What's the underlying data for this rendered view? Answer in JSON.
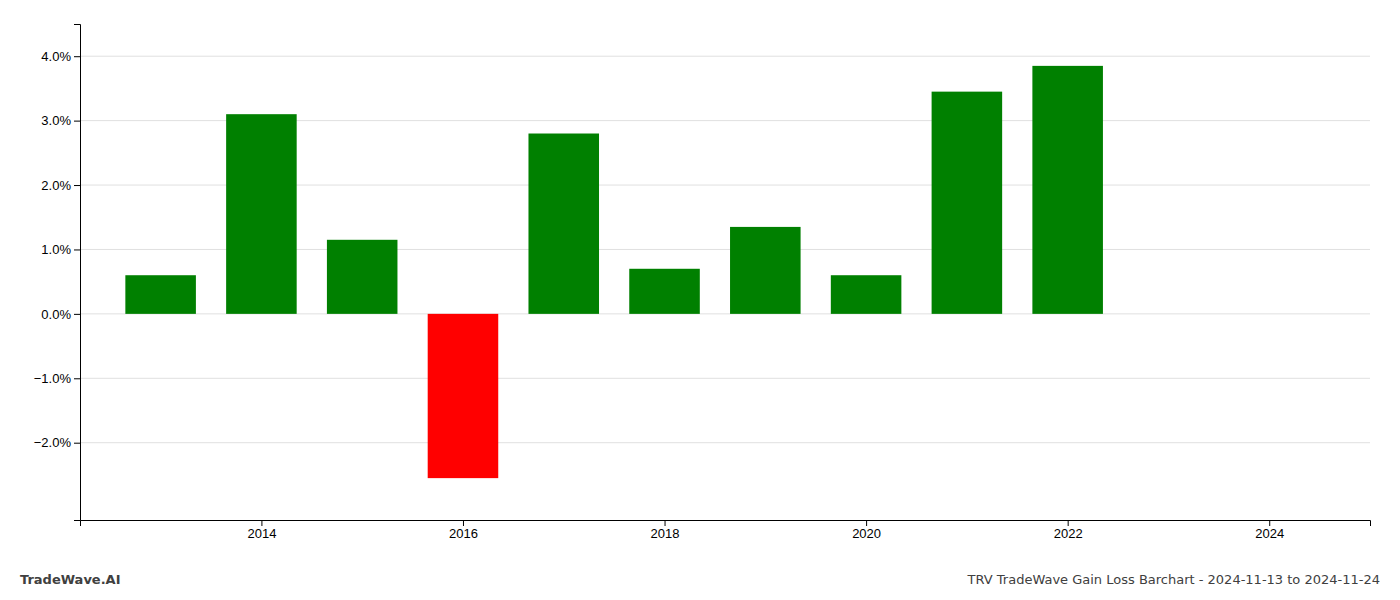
{
  "chart_data": {
    "type": "bar",
    "title": "TRV TradeWave Gain Loss Barchart - 2024-11-13 to 2024-11-24",
    "annotations": [
      "TradeWave.AI"
    ],
    "x": [
      2013,
      2014,
      2015,
      2016,
      2017,
      2018,
      2019,
      2020,
      2021,
      2022
    ],
    "values": [
      0.006,
      0.031,
      0.0115,
      -0.0255,
      0.028,
      0.007,
      0.0135,
      0.006,
      0.0345,
      0.0385
    ],
    "colors": [
      "#008000",
      "#008000",
      "#008000",
      "#ff0000",
      "#008000",
      "#008000",
      "#008000",
      "#008000",
      "#008000",
      "#008000"
    ],
    "xlim": [
      2012.2,
      2025.0
    ],
    "xticks": [
      2014,
      2016,
      2018,
      2020,
      2022,
      2024
    ],
    "ylim": [
      -0.032,
      0.045
    ],
    "yticks": [
      {
        "value": -0.02,
        "label": "−2.0%"
      },
      {
        "value": -0.01,
        "label": "−1.0%"
      },
      {
        "value": 0.0,
        "label": "0.0%"
      },
      {
        "value": 0.01,
        "label": "1.0%"
      },
      {
        "value": 0.02,
        "label": "2.0%"
      },
      {
        "value": 0.03,
        "label": "3.0%"
      },
      {
        "value": 0.04,
        "label": "4.0%"
      }
    ],
    "grid": true
  }
}
